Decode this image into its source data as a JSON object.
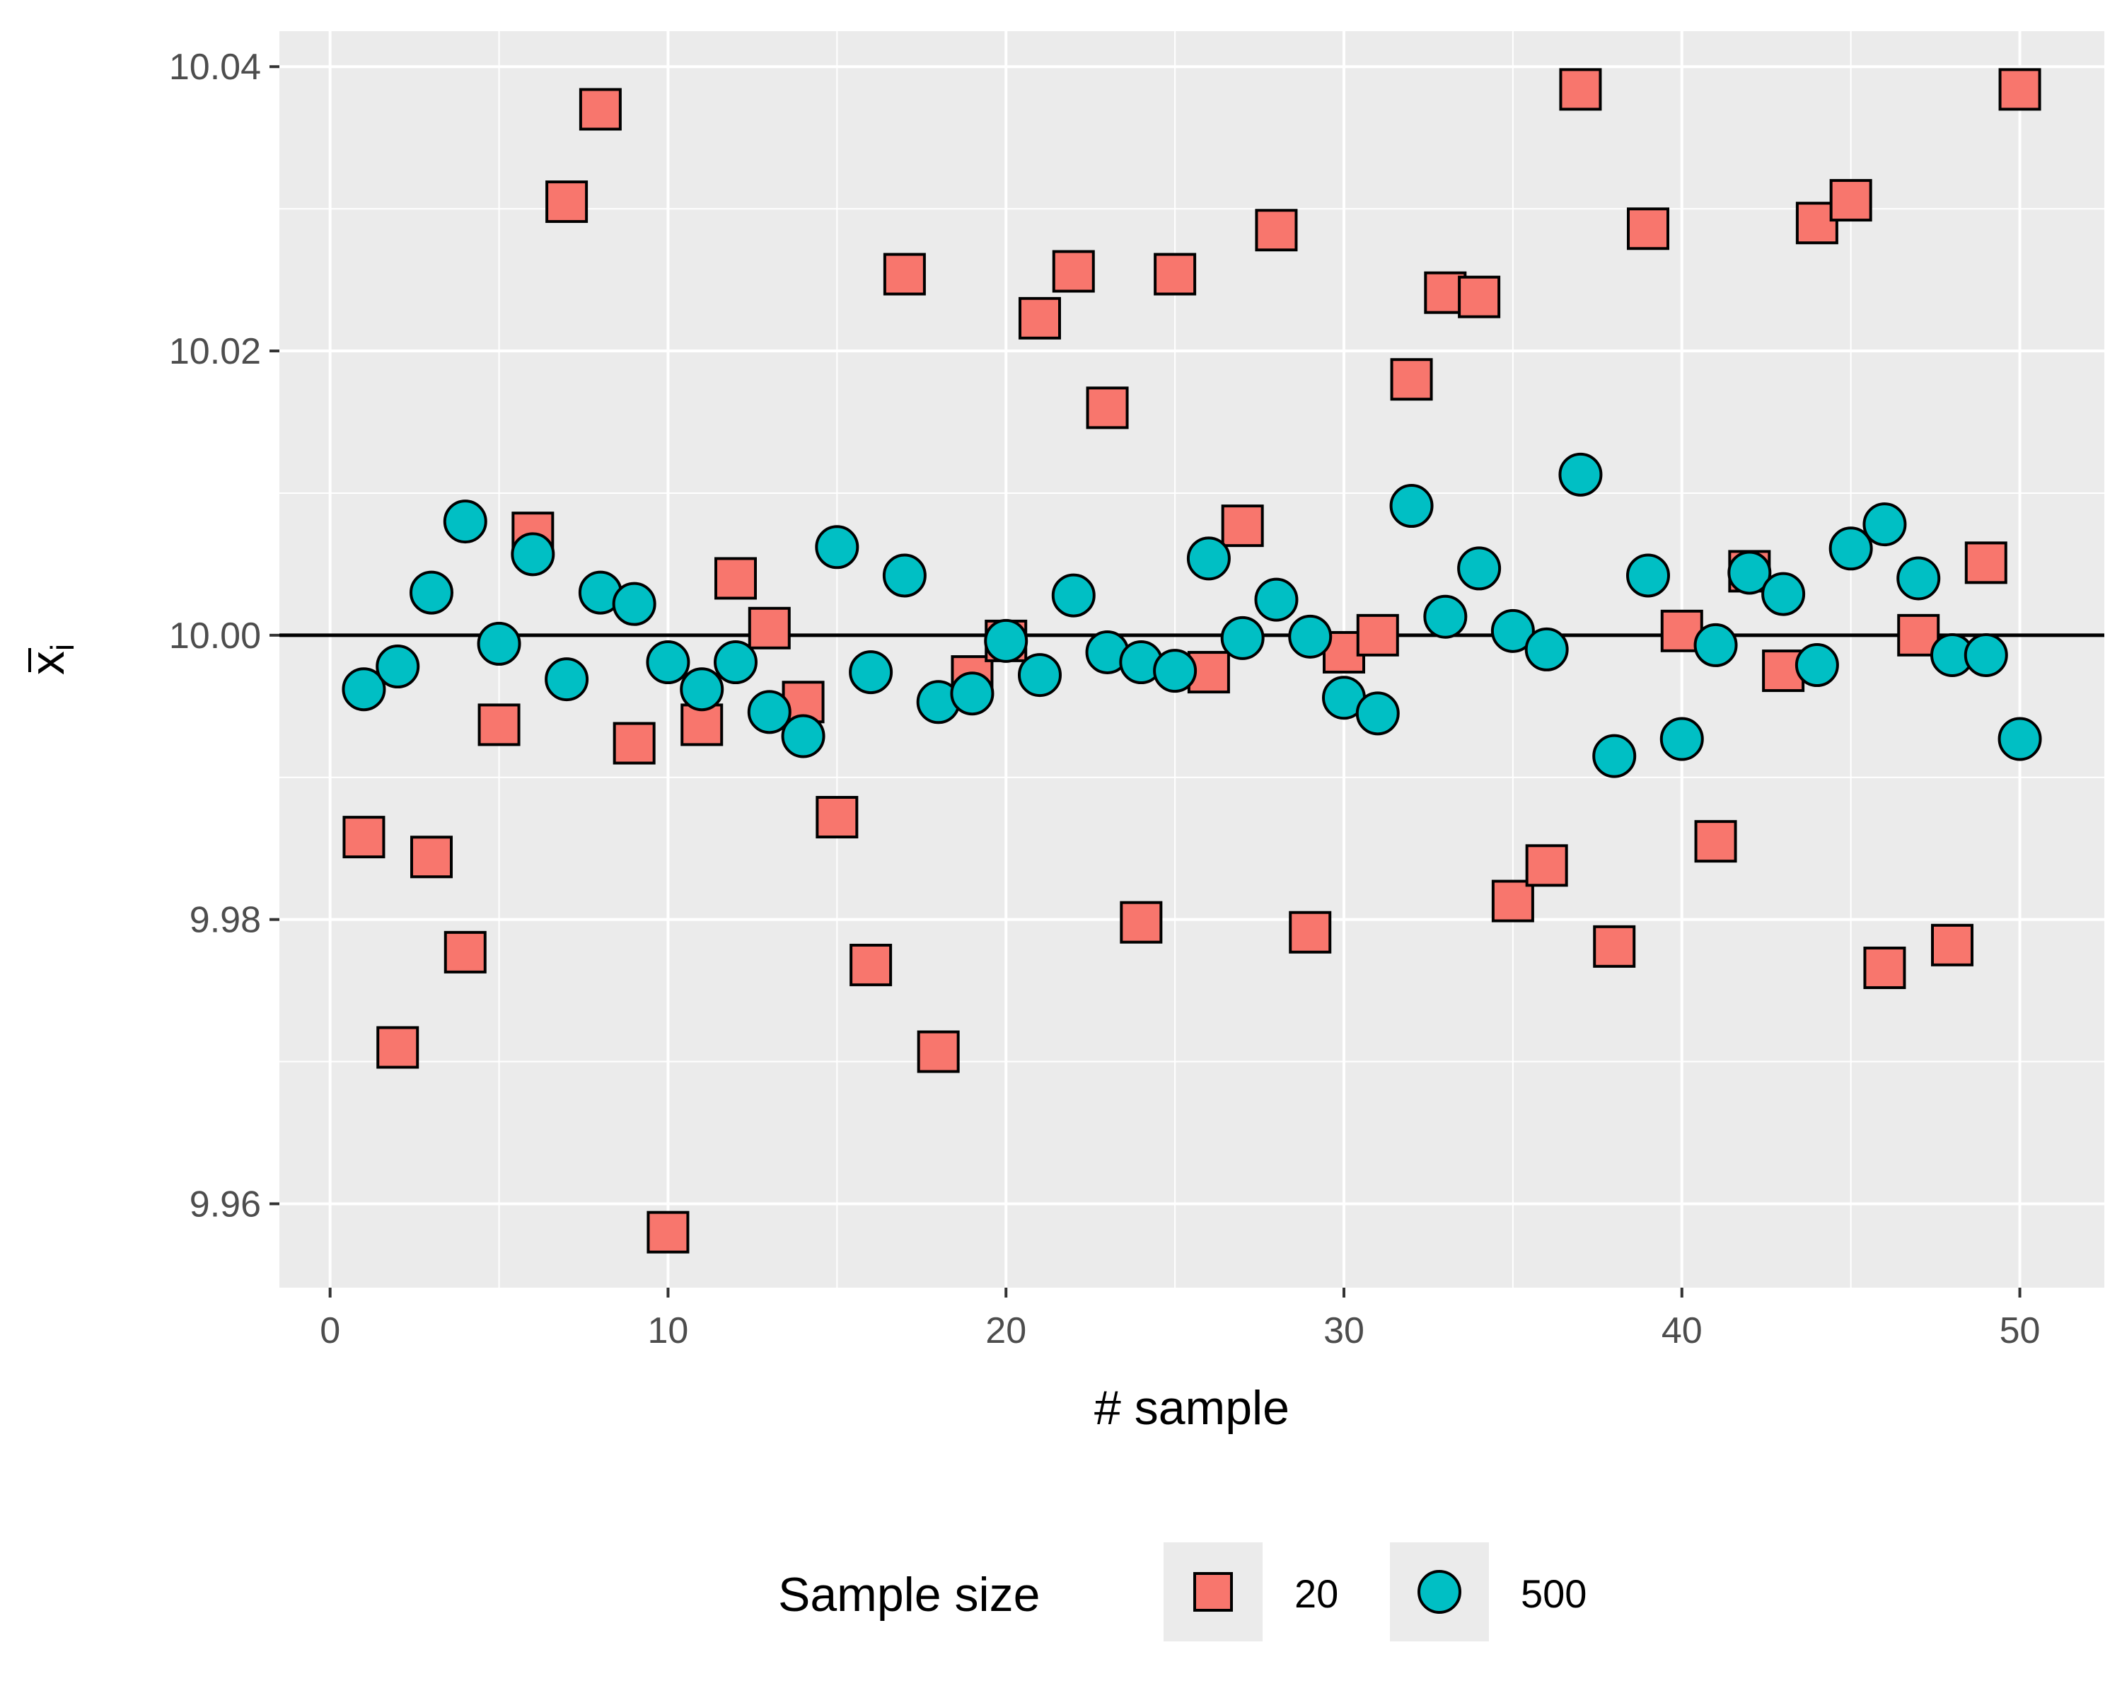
{
  "chart_data": {
    "type": "scatter",
    "xlabel": "# sample",
    "ylabel_base": "x",
    "ylabel_sub": "i",
    "xlim": [
      -1.5,
      52.5
    ],
    "ylim": [
      9.9541,
      10.0425
    ],
    "x_ticks": [
      0,
      10,
      20,
      30,
      40,
      50
    ],
    "x_tick_labels": [
      "0",
      "10",
      "20",
      "30",
      "40",
      "50"
    ],
    "y_ticks": [
      9.96,
      9.98,
      10.0,
      10.02,
      10.04
    ],
    "y_tick_labels": [
      "9.96",
      "9.98",
      "10.00",
      "10.02",
      "10.04"
    ],
    "y_minor_ticks": [
      9.97,
      9.99,
      10.01,
      10.03
    ],
    "x_minor_ticks": [
      5,
      15,
      25,
      35,
      45
    ],
    "reference_line_y": 10.0,
    "grid": true,
    "legend_position": "bottom",
    "legend_title": "Sample size",
    "series": [
      {
        "name": "20",
        "shape": "square",
        "color": "#F8766D",
        "x": [
          1,
          2,
          3,
          4,
          5,
          6,
          7,
          8,
          9,
          10,
          11,
          12,
          13,
          14,
          15,
          16,
          17,
          18,
          19,
          20,
          21,
          22,
          23,
          24,
          25,
          26,
          27,
          28,
          29,
          30,
          31,
          32,
          33,
          34,
          35,
          36,
          37,
          38,
          39,
          40,
          41,
          42,
          43,
          44,
          45,
          46,
          47,
          48,
          49,
          50
        ],
        "y": [
          9.9858,
          9.971,
          9.9844,
          9.9777,
          9.9937,
          10.0072,
          10.0305,
          10.037,
          9.9924,
          9.958,
          9.9937,
          10.004,
          10.0005,
          9.9953,
          9.9872,
          9.9768,
          10.0254,
          9.9707,
          9.9971,
          9.9996,
          10.0223,
          10.0256,
          10.016,
          9.9798,
          10.0254,
          9.9974,
          10.0077,
          10.0285,
          9.9791,
          9.9988,
          10.0,
          10.018,
          10.0241,
          10.0238,
          9.9813,
          9.9838,
          10.0384,
          9.9781,
          10.0286,
          10.0003,
          9.9855,
          10.0045,
          9.9975,
          10.029,
          10.0306,
          9.9766,
          10.0,
          9.9782,
          10.0051,
          10.0384
        ]
      },
      {
        "name": "500",
        "shape": "circle",
        "color": "#00BFC4",
        "x": [
          1,
          2,
          3,
          4,
          5,
          6,
          7,
          8,
          9,
          10,
          11,
          12,
          13,
          14,
          15,
          16,
          17,
          18,
          19,
          20,
          21,
          22,
          23,
          24,
          25,
          26,
          27,
          28,
          29,
          30,
          31,
          32,
          33,
          34,
          35,
          36,
          37,
          38,
          39,
          40,
          41,
          42,
          43,
          44,
          45,
          46,
          47,
          48,
          49,
          50
        ],
        "y": [
          9.9962,
          9.9978,
          10.003,
          10.008,
          9.9994,
          10.0057,
          9.9969,
          10.003,
          10.0022,
          9.9981,
          9.9962,
          9.9981,
          9.9946,
          9.9929,
          10.0062,
          9.9974,
          10.0042,
          9.9953,
          9.9959,
          9.9996,
          9.9972,
          10.0028,
          9.9988,
          9.9981,
          9.9975,
          10.0054,
          9.9998,
          10.0025,
          9.9999,
          9.9956,
          9.9945,
          10.0091,
          10.0013,
          10.0047,
          10.0003,
          9.999,
          10.0113,
          9.9915,
          10.0042,
          9.9927,
          9.9993,
          10.0044,
          10.0029,
          9.9979,
          10.0061,
          10.0078,
          10.004,
          9.9986,
          9.9986,
          9.9927
        ]
      }
    ]
  }
}
